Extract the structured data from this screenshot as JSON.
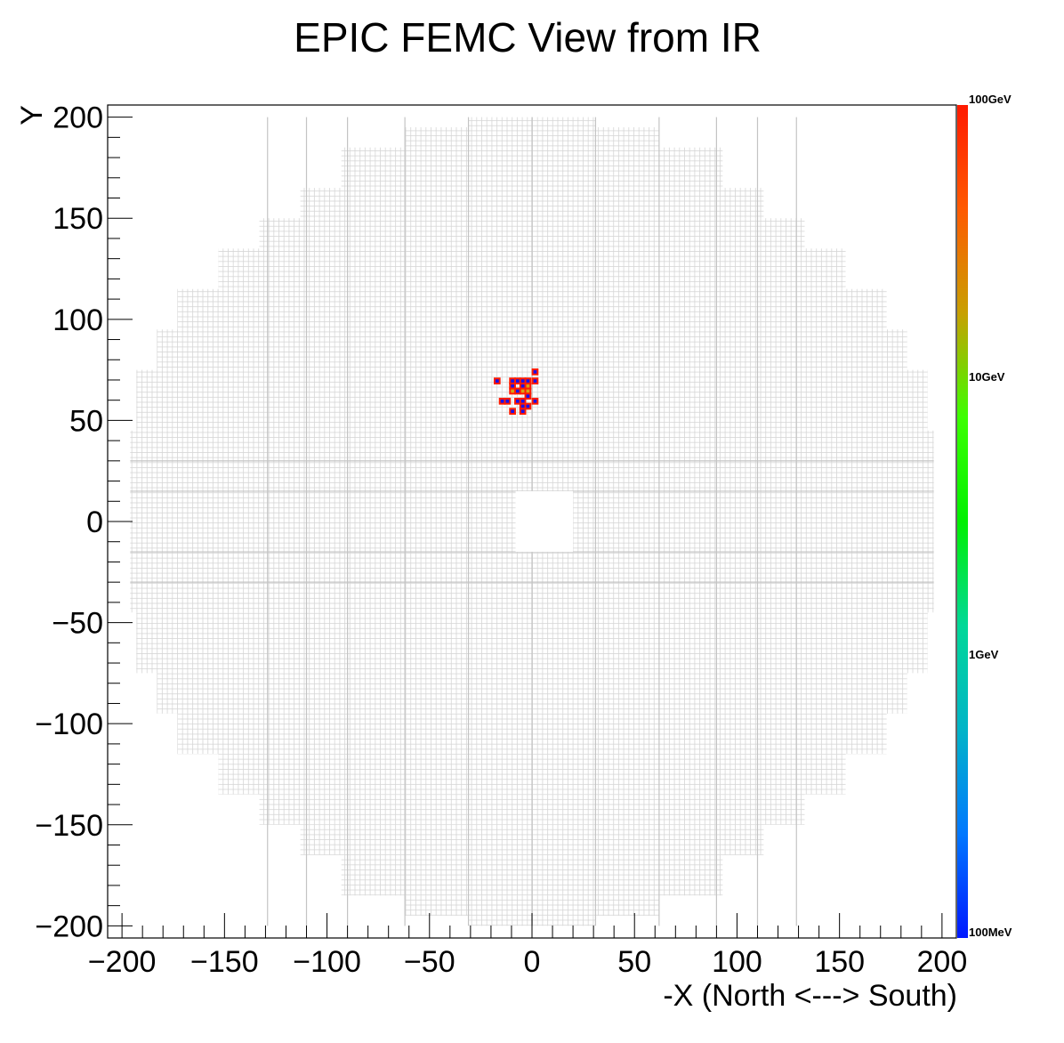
{
  "chart_data": {
    "type": "heatmap",
    "title": "EPIC FEMC View from IR",
    "xlabel": "-X (North <---> South)",
    "ylabel": "Y",
    "xlim": [
      -207,
      207
    ],
    "ylim": [
      -206,
      206
    ],
    "x_ticks": [
      -200,
      -150,
      -100,
      -50,
      0,
      50,
      100,
      150,
      200
    ],
    "x_tick_labels": [
      "−200",
      "−150",
      "−100",
      "−50",
      "0",
      "50",
      "100",
      "150",
      "200"
    ],
    "y_ticks": [
      200,
      150,
      100,
      50,
      0,
      -50,
      -100,
      -150,
      -200
    ],
    "y_tick_labels": [
      "200",
      "150",
      "100",
      "50",
      "0",
      "−50",
      "−100",
      "−150",
      "−200"
    ],
    "colorbar": {
      "scale": "log",
      "labels": [
        "100GeV",
        "10GeV",
        "1GeV",
        "100MeV"
      ],
      "colors": [
        "#ff1a00",
        "#ff5a00",
        "#c8a000",
        "#3cff00",
        "#00f000",
        "#00d898",
        "#00b4c8",
        "#0078ff",
        "#0018ff"
      ]
    },
    "detector": {
      "cell_size": 2.5,
      "beam_hole": {
        "x": [
          -8,
          20
        ],
        "y": [
          -15,
          15
        ]
      },
      "boundary_color": "#d3d3d3",
      "outline": [
        {
          "y": [
            195,
            200
          ],
          "x": [
            -31,
            31
          ]
        },
        {
          "y": [
            185,
            195
          ],
          "x": [
            -62,
            62
          ]
        },
        {
          "y": [
            165,
            185
          ],
          "x": [
            -93,
            93
          ]
        },
        {
          "y": [
            150,
            165
          ],
          "x": [
            -113,
            113
          ]
        },
        {
          "y": [
            135,
            150
          ],
          "x": [
            -133,
            133
          ]
        },
        {
          "y": [
            115,
            135
          ],
          "x": [
            -153,
            153
          ]
        },
        {
          "y": [
            95,
            115
          ],
          "x": [
            -173,
            173
          ]
        },
        {
          "y": [
            75,
            95
          ],
          "x": [
            -183,
            183
          ]
        },
        {
          "y": [
            45,
            75
          ],
          "x": [
            -193,
            193
          ]
        },
        {
          "y": [
            -45,
            45
          ],
          "x": [
            -196,
            196
          ]
        },
        {
          "y": [
            -75,
            -45
          ],
          "x": [
            -193,
            193
          ]
        },
        {
          "y": [
            -95,
            -75
          ],
          "x": [
            -183,
            183
          ]
        },
        {
          "y": [
            -115,
            -95
          ],
          "x": [
            -173,
            173
          ]
        },
        {
          "y": [
            -135,
            -115
          ],
          "x": [
            -153,
            153
          ]
        },
        {
          "y": [
            -150,
            -135
          ],
          "x": [
            -133,
            133
          ]
        },
        {
          "y": [
            -165,
            -150
          ],
          "x": [
            -113,
            113
          ]
        },
        {
          "y": [
            -185,
            -165
          ],
          "x": [
            -93,
            93
          ]
        },
        {
          "y": [
            -195,
            -185
          ],
          "x": [
            -62,
            62
          ]
        },
        {
          "y": [
            -200,
            -195
          ],
          "x": [
            -31,
            31
          ]
        }
      ]
    },
    "hits": [
      {
        "x": 1.5,
        "y": 74,
        "energy": "low"
      },
      {
        "x": -17,
        "y": 69.5,
        "energy": "low"
      },
      {
        "x": -9.5,
        "y": 69.5,
        "energy": "low"
      },
      {
        "x": -7,
        "y": 69.5,
        "energy": "low"
      },
      {
        "x": -4.5,
        "y": 69.5,
        "energy": "low"
      },
      {
        "x": -2,
        "y": 69.5,
        "energy": "low"
      },
      {
        "x": 1.5,
        "y": 69.5,
        "energy": "low"
      },
      {
        "x": -9.5,
        "y": 67,
        "energy": "low"
      },
      {
        "x": -4.5,
        "y": 67,
        "energy": "low"
      },
      {
        "x": -2,
        "y": 67,
        "energy": "mid"
      },
      {
        "x": -9.5,
        "y": 64.5,
        "energy": "mid"
      },
      {
        "x": -7,
        "y": 64.5,
        "energy": "low"
      },
      {
        "x": -4.5,
        "y": 64.5,
        "energy": "mid"
      },
      {
        "x": -2,
        "y": 64.5,
        "energy": "mid"
      },
      {
        "x": -14.5,
        "y": 59.5,
        "energy": "low"
      },
      {
        "x": -12,
        "y": 59.5,
        "energy": "low"
      },
      {
        "x": -7,
        "y": 59.5,
        "energy": "low"
      },
      {
        "x": -4.5,
        "y": 59.5,
        "energy": "low"
      },
      {
        "x": -2,
        "y": 62,
        "energy": "low"
      },
      {
        "x": 1.5,
        "y": 59.5,
        "energy": "low"
      },
      {
        "x": -4.5,
        "y": 57,
        "energy": "low"
      },
      {
        "x": -2,
        "y": 57,
        "energy": "low"
      },
      {
        "x": -9.5,
        "y": 54.5,
        "energy": "low"
      },
      {
        "x": -4.5,
        "y": 54.5,
        "energy": "low"
      }
    ]
  }
}
